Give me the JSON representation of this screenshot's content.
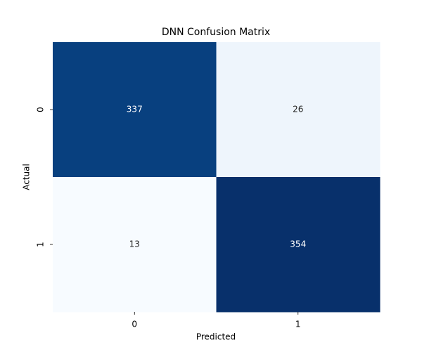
{
  "chart_data": {
    "type": "heatmap",
    "title": "DNN Confusion Matrix",
    "x_label": "Predicted",
    "y_label": "Actual",
    "x_categories": [
      "0",
      "1"
    ],
    "y_categories": [
      "0",
      "1"
    ],
    "values": [
      [
        337,
        26
      ],
      [
        13,
        354
      ]
    ],
    "colors": [
      [
        "#08407f",
        "#eef5fc"
      ],
      [
        "#f7fbff",
        "#08306b"
      ]
    ]
  }
}
